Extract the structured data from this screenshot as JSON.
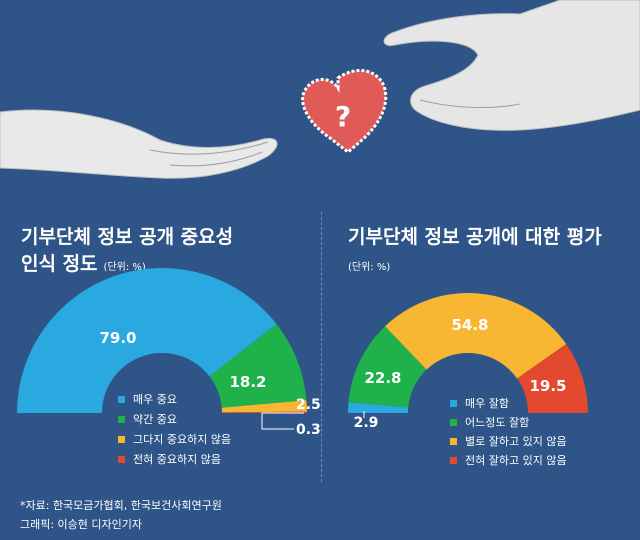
{
  "titles": {
    "left_line1": "기부단체 정보 공개 중요성",
    "left_line2": "인식 정도",
    "left_unit": "(단위: %)",
    "right": "기부단체 정보 공개에 대한 평가",
    "right_unit": "(단위: %)"
  },
  "source": {
    "line1": "*자료: 한국모금가협회, 한국보건사회연구원",
    "line2": "그래픽: 이승현 디자인기자"
  },
  "chart_data": [
    {
      "type": "pie",
      "style": "half-donut",
      "categories": [
        "매우 중요",
        "약간 중요",
        "그다지 중요하지 않음",
        "전혀 중요하지 않음"
      ],
      "values": [
        79.0,
        18.2,
        2.5,
        0.3
      ],
      "value_labels": [
        "79.0",
        "18.2",
        "2.5",
        "0.3"
      ],
      "colors": [
        "#2aa8e0",
        "#1fb24a",
        "#f7b733",
        "#e2492f"
      ],
      "unit": "%"
    },
    {
      "type": "pie",
      "style": "half-donut",
      "categories": [
        "매우 잘함",
        "어느정도 잘함",
        "별로 잘하고 있지 않음",
        "전혀 잘하고 있지 않음"
      ],
      "values": [
        2.9,
        22.8,
        54.8,
        19.5
      ],
      "value_labels": [
        "2.9",
        "22.8",
        "54.8",
        "19.5"
      ],
      "colors": [
        "#2aa8e0",
        "#1fb24a",
        "#f7b733",
        "#e2492f"
      ],
      "unit": "%"
    }
  ]
}
